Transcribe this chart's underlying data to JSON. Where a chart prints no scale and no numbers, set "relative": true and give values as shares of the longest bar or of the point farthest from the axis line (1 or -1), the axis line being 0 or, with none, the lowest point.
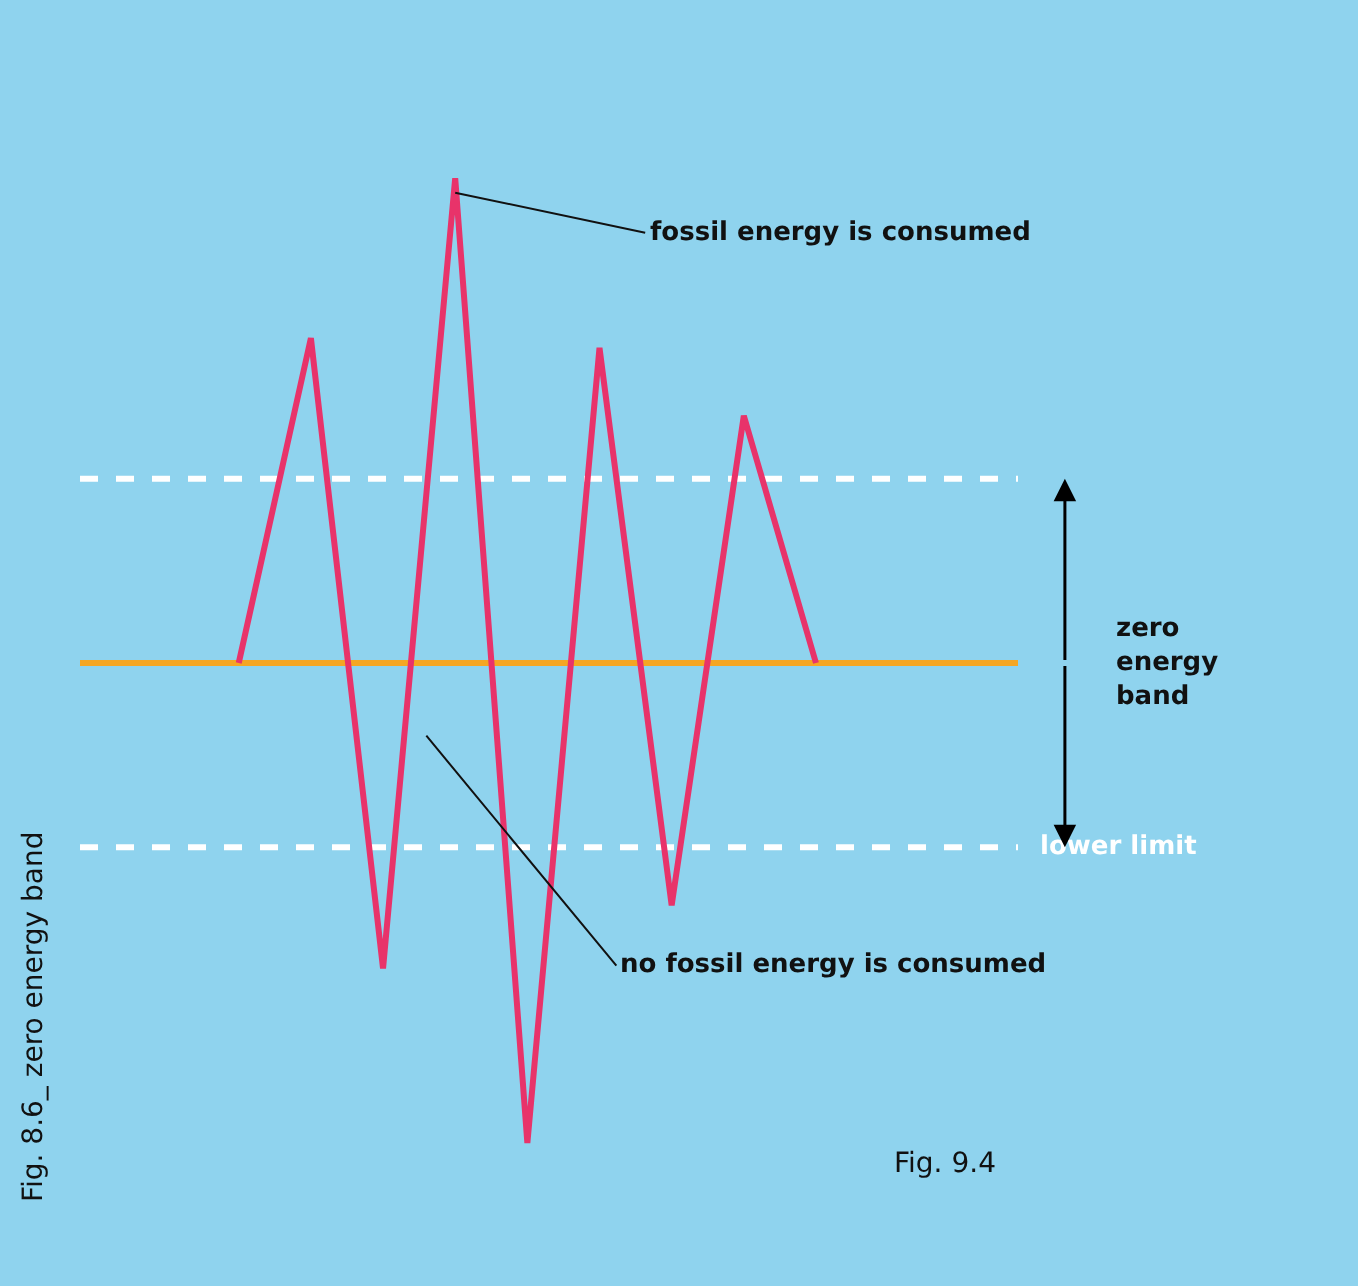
{
  "chart_data": {
    "type": "line",
    "relative": true,
    "categories": [
      null,
      null,
      null,
      null,
      null,
      null,
      null,
      null,
      null
    ],
    "series": [
      {
        "color": "#e8336a",
        "values": [
          0,
          0.67,
          -0.63,
          1,
          -0.99,
          0.65,
          -0.5,
          0.51,
          0
        ]
      }
    ],
    "marker": "none",
    "line_style": "solid",
    "ref_lines": [
      {
        "axis": "y",
        "value": 0,
        "color": "#f5a623",
        "line_style": "solid"
      },
      {
        "axis": "y",
        "value": 0.38,
        "color": "#ffffff",
        "line_style": "dashed"
      },
      {
        "axis": "y",
        "value": -0.38,
        "color": "#ffffff",
        "line_style": "dashed",
        "label": "lower limit"
      }
    ],
    "annotations": [
      "fossil energy is consumed",
      "no fossil energy is consumed",
      "Fig. 9.4",
      "Fig. 8.6_ zero energy band",
      "zero energy band"
    ]
  }
}
